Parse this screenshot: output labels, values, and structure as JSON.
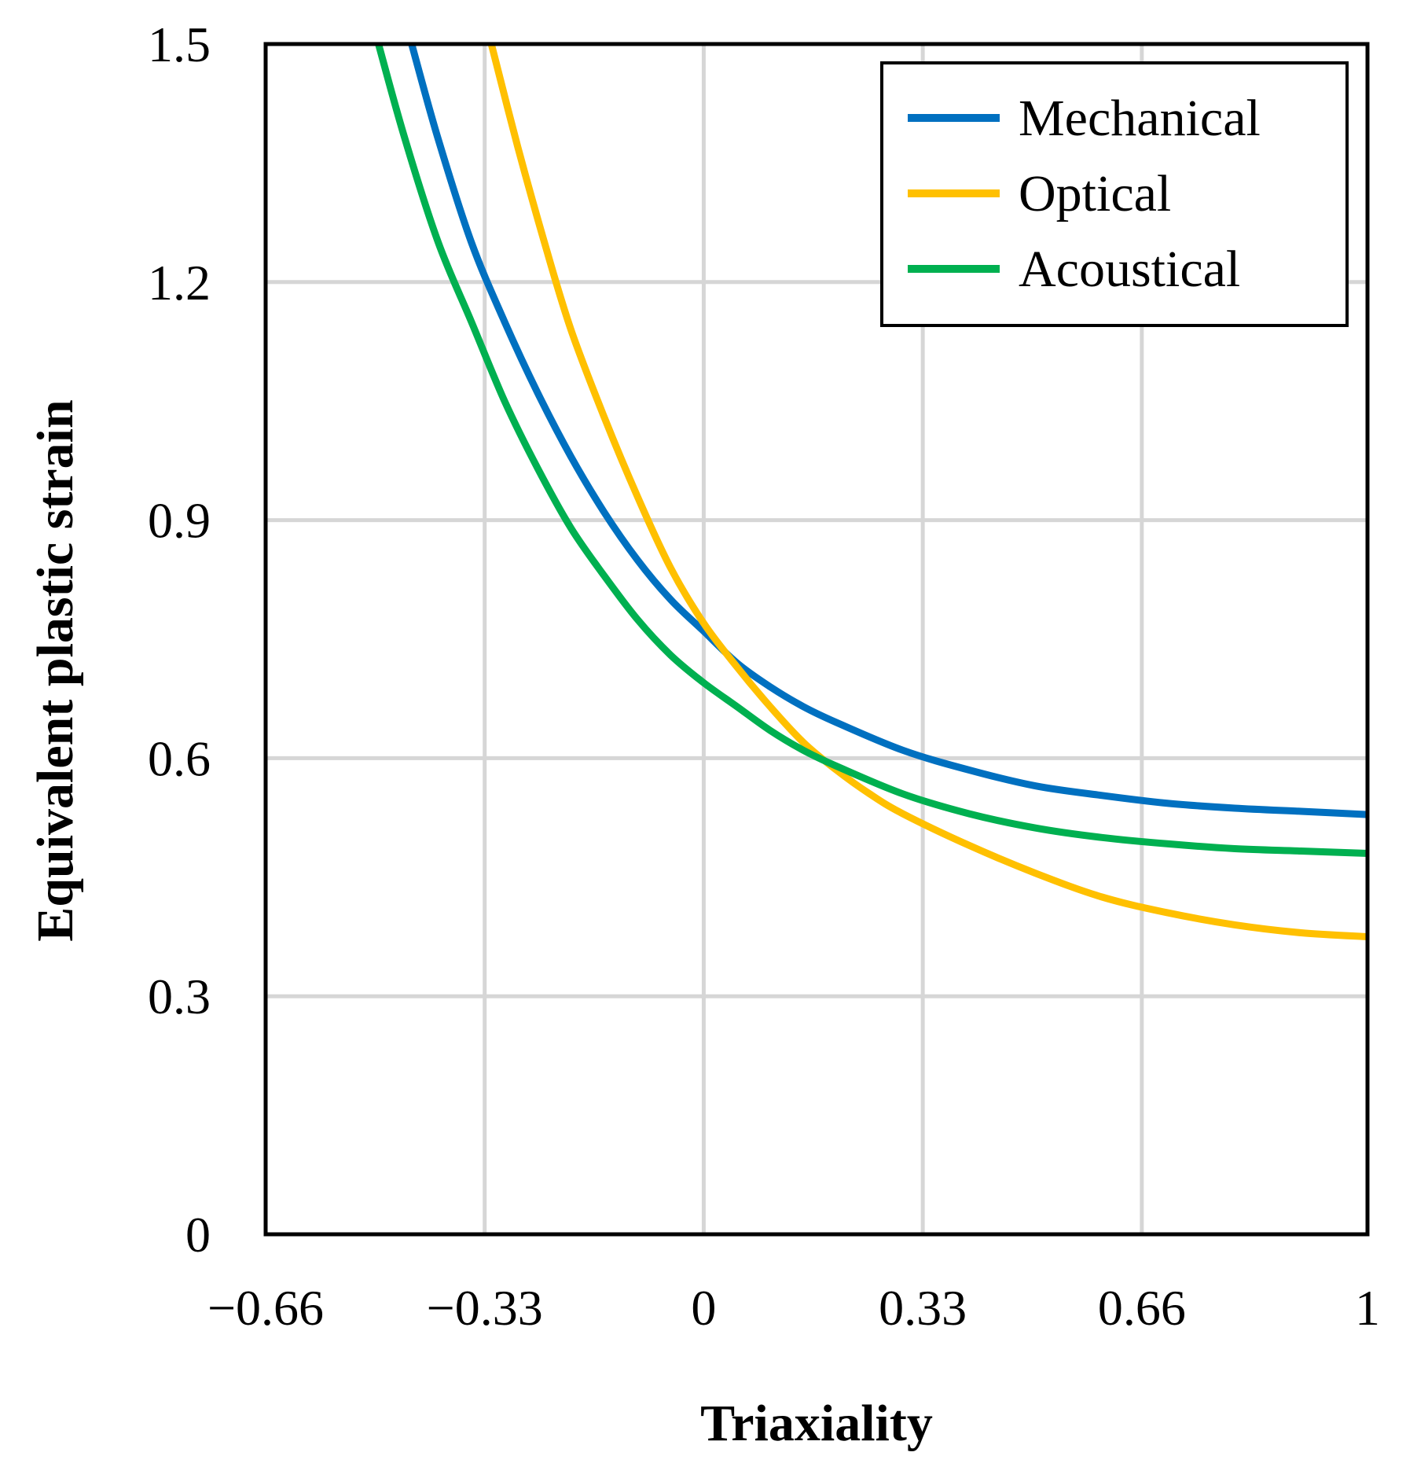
{
  "chart_data": {
    "type": "line",
    "title": "",
    "xlabel": "Triaxiality",
    "ylabel": "Equivalent plastic strain",
    "xlim": [
      -0.66,
      1
    ],
    "ylim": [
      0,
      1.5
    ],
    "grid": true,
    "legend_position": "top-right",
    "x_ticks": [
      -0.66,
      -0.33,
      0,
      0.33,
      0.66,
      1
    ],
    "x_tick_labels": [
      "−0.66",
      "−0.33",
      "0",
      "0.33",
      "0.66",
      "1"
    ],
    "y_ticks": [
      0,
      0.3,
      0.6,
      0.9,
      1.2,
      1.5
    ],
    "y_tick_labels": [
      "0",
      "0.3",
      "0.6",
      "0.9",
      "1.2",
      "1.5"
    ],
    "series": [
      {
        "name": "Mechanical",
        "color": "#0070C0",
        "x": [
          -0.44,
          -0.4,
          -0.35,
          -0.3,
          -0.25,
          -0.2,
          -0.15,
          -0.1,
          -0.05,
          0.0,
          0.05,
          0.1,
          0.15,
          0.2,
          0.3,
          0.4,
          0.5,
          0.6,
          0.7,
          0.8,
          0.9,
          1.0
        ],
        "y": [
          1.5,
          1.38,
          1.25,
          1.15,
          1.06,
          0.98,
          0.91,
          0.85,
          0.8,
          0.76,
          0.72,
          0.69,
          0.665,
          0.645,
          0.61,
          0.585,
          0.565,
          0.553,
          0.543,
          0.537,
          0.533,
          0.529
        ]
      },
      {
        "name": "Optical",
        "color": "#FFC000",
        "x": [
          -0.32,
          -0.28,
          -0.24,
          -0.2,
          -0.15,
          -0.1,
          -0.05,
          0.0,
          0.05,
          0.1,
          0.15,
          0.2,
          0.25,
          0.3,
          0.4,
          0.5,
          0.6,
          0.7,
          0.8,
          0.9,
          1.0
        ],
        "y": [
          1.5,
          1.37,
          1.25,
          1.14,
          1.03,
          0.93,
          0.84,
          0.77,
          0.715,
          0.665,
          0.62,
          0.585,
          0.555,
          0.53,
          0.49,
          0.455,
          0.425,
          0.405,
          0.39,
          0.38,
          0.375
        ]
      },
      {
        "name": "Acoustical",
        "color": "#00B050",
        "x": [
          -0.49,
          -0.45,
          -0.4,
          -0.35,
          -0.3,
          -0.25,
          -0.2,
          -0.15,
          -0.1,
          -0.05,
          0.0,
          0.05,
          0.1,
          0.15,
          0.2,
          0.3,
          0.4,
          0.5,
          0.6,
          0.7,
          0.8,
          0.9,
          1.0
        ],
        "y": [
          1.5,
          1.38,
          1.25,
          1.15,
          1.05,
          0.965,
          0.89,
          0.83,
          0.775,
          0.73,
          0.695,
          0.665,
          0.635,
          0.61,
          0.59,
          0.555,
          0.53,
          0.512,
          0.5,
          0.492,
          0.486,
          0.483,
          0.48
        ]
      }
    ]
  }
}
